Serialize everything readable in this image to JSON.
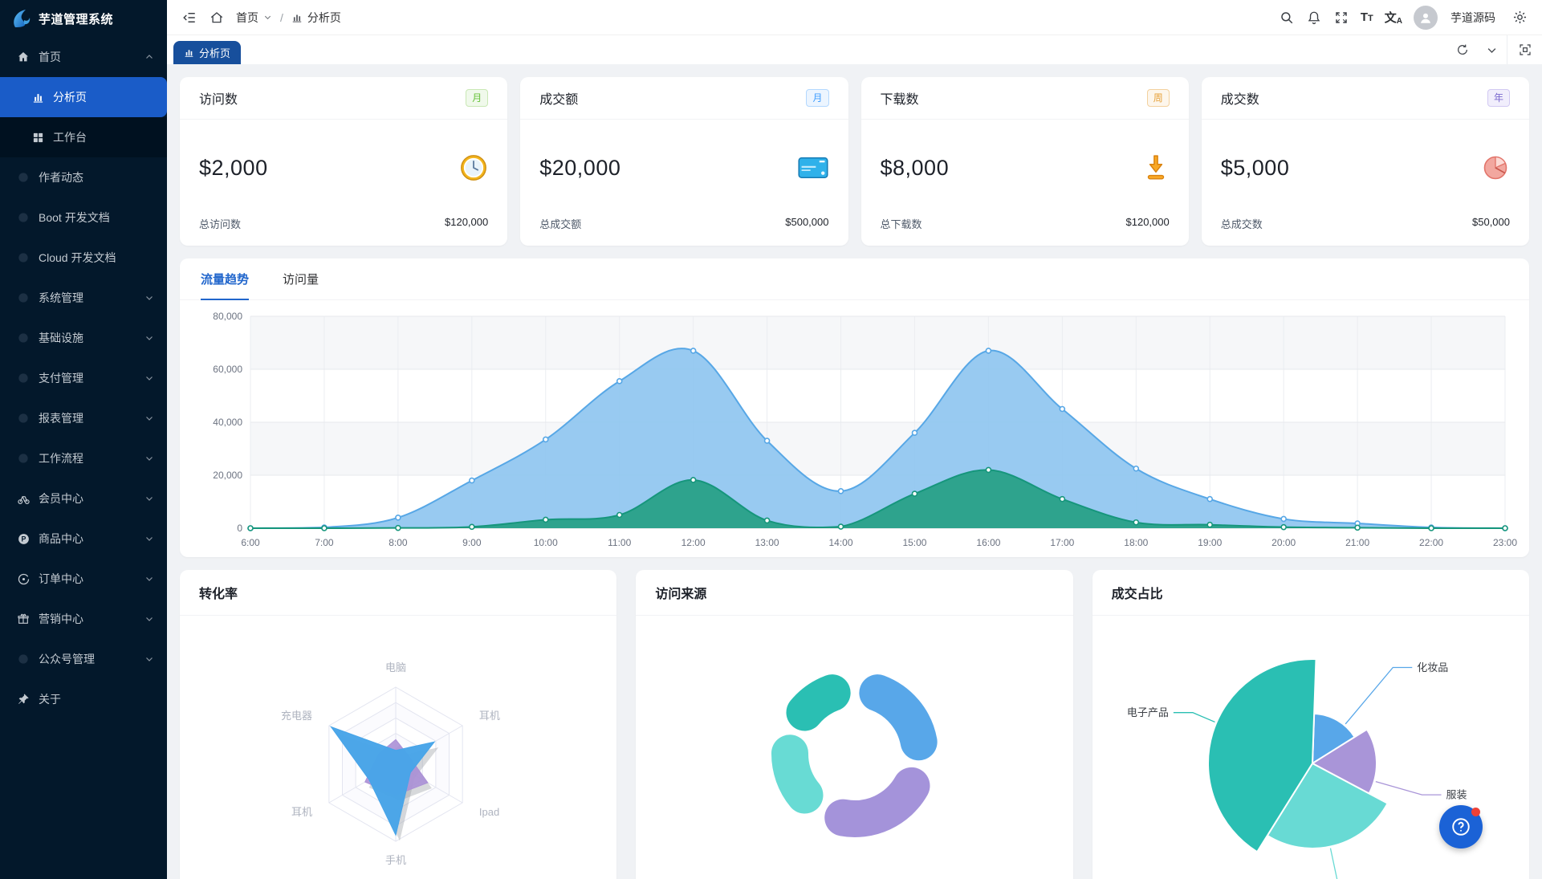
{
  "app": {
    "title": "芋道管理系统"
  },
  "topbar": {
    "breadcrumb_home": "首页",
    "breadcrumb_current": "分析页",
    "user_name": "芋道源码"
  },
  "tabbar": {
    "active_tab": "分析页"
  },
  "sidebar": {
    "items": [
      {
        "label": "首页",
        "icon": "home",
        "level": 1,
        "arrow": "up"
      },
      {
        "label": "分析页",
        "icon": "chart",
        "level": 2,
        "active": true
      },
      {
        "label": "工作台",
        "icon": "grid",
        "level": 2
      },
      {
        "label": "作者动态",
        "icon": "dot",
        "level": 1
      },
      {
        "label": "Boot 开发文档",
        "icon": "dot",
        "level": 1
      },
      {
        "label": "Cloud 开发文档",
        "icon": "dot",
        "level": 1
      },
      {
        "label": "系统管理",
        "icon": "dot",
        "level": 1,
        "arrow": "down"
      },
      {
        "label": "基础设施",
        "icon": "dot",
        "level": 1,
        "arrow": "down"
      },
      {
        "label": "支付管理",
        "icon": "dot",
        "level": 1,
        "arrow": "down"
      },
      {
        "label": "报表管理",
        "icon": "dot",
        "level": 1,
        "arrow": "down"
      },
      {
        "label": "工作流程",
        "icon": "dot",
        "level": 1,
        "arrow": "down"
      },
      {
        "label": "会员中心",
        "icon": "member",
        "level": 1,
        "arrow": "down"
      },
      {
        "label": "商品中心",
        "icon": "product",
        "level": 1,
        "arrow": "down"
      },
      {
        "label": "订单中心",
        "icon": "order",
        "level": 1,
        "arrow": "down"
      },
      {
        "label": "营销中心",
        "icon": "gift",
        "level": 1,
        "arrow": "down"
      },
      {
        "label": "公众号管理",
        "icon": "dot",
        "level": 1,
        "arrow": "down"
      },
      {
        "label": "关于",
        "icon": "pin",
        "level": 1
      }
    ]
  },
  "stat_cards": [
    {
      "title": "访问数",
      "badge": "月",
      "badge_type": "green",
      "value": "$2,000",
      "icon": "clock",
      "footer_label": "总访问数",
      "footer_value": "$120,000"
    },
    {
      "title": "成交额",
      "badge": "月",
      "badge_type": "blue",
      "value": "$20,000",
      "icon": "card",
      "footer_label": "总成交额",
      "footer_value": "$500,000"
    },
    {
      "title": "下载数",
      "badge": "周",
      "badge_type": "orange",
      "value": "$8,000",
      "icon": "download",
      "footer_label": "总下载数",
      "footer_value": "$120,000"
    },
    {
      "title": "成交数",
      "badge": "年",
      "badge_type": "purple",
      "value": "$5,000",
      "icon": "pie",
      "footer_label": "总成交数",
      "footer_value": "$50,000"
    }
  ],
  "trend_panel": {
    "tabs": [
      "流量趋势",
      "访问量"
    ],
    "active_tab_index": 0
  },
  "bottom_cards": {
    "conversion_title": "转化率",
    "source_title": "访问来源",
    "deal_title": "成交占比"
  },
  "chart_data": [
    {
      "id": "traffic_trend",
      "type": "area",
      "title": "流量趋势",
      "x": [
        "6:00",
        "7:00",
        "8:00",
        "9:00",
        "10:00",
        "11:00",
        "12:00",
        "13:00",
        "14:00",
        "15:00",
        "16:00",
        "17:00",
        "18:00",
        "19:00",
        "20:00",
        "21:00",
        "22:00",
        "23:00"
      ],
      "series": [
        {
          "name": "series-blue",
          "line_color": "#57a7e6",
          "fill_color": "#8fc6f0",
          "values": [
            0,
            300,
            4000,
            18000,
            33500,
            55500,
            67000,
            33000,
            14000,
            36000,
            67000,
            45000,
            22500,
            11000,
            3500,
            1800,
            300,
            0
          ]
        },
        {
          "name": "series-teal",
          "line_color": "#16967c",
          "fill_color": "#2aa188",
          "values": [
            0,
            0,
            100,
            500,
            3200,
            5000,
            18200,
            2900,
            600,
            13000,
            22000,
            11000,
            2200,
            1300,
            400,
            200,
            0,
            0
          ]
        }
      ],
      "ylim": [
        0,
        80000
      ],
      "yticks": [
        0,
        20000,
        40000,
        60000,
        80000
      ],
      "grid": true,
      "legend": false
    },
    {
      "id": "conversion_radar",
      "type": "radar",
      "title": "转化率",
      "indicators": [
        "电脑",
        "耳机",
        "Ipad",
        "手机",
        "耳机",
        "充电器"
      ],
      "max": 100,
      "series": [
        {
          "name": "radar-purple",
          "color": "#ab90d6",
          "values": [
            32,
            20,
            48,
            40,
            46,
            26
          ]
        },
        {
          "name": "radar-blue",
          "color": "#47a4e8",
          "values": [
            18,
            58,
            22,
            92,
            40,
            97
          ]
        }
      ]
    },
    {
      "id": "visit_source_donut",
      "type": "pie",
      "subtype": "donut",
      "title": "访问来源",
      "slices": [
        {
          "name": "slice-blue",
          "color": "#58a7e9",
          "start_deg": 4,
          "end_deg": 96,
          "percent_est": 26
        },
        {
          "name": "slice-purple",
          "color": "#a493da",
          "start_deg": 103,
          "end_deg": 207,
          "percent_est": 29
        },
        {
          "name": "slice-cyan",
          "color": "#68dbd4",
          "start_deg": 214,
          "end_deg": 287,
          "percent_est": 20
        },
        {
          "name": "slice-teal",
          "color": "#2abfb3",
          "start_deg": 293,
          "end_deg": 356,
          "percent_est": 18
        }
      ]
    },
    {
      "id": "deal_share_rose",
      "type": "pie",
      "subtype": "rose",
      "title": "成交占比",
      "slices": [
        {
          "label": "化妆品",
          "color": "#58a7e9",
          "start_deg": 2,
          "end_deg": 58,
          "radius_px": 62
        },
        {
          "label": "服装",
          "color": "#a995d8",
          "start_deg": 58,
          "end_deg": 118,
          "radius_px": 80
        },
        {
          "label": "",
          "color": "#68dad4",
          "start_deg": 118,
          "end_deg": 212,
          "radius_px": 106
        },
        {
          "label": "电子产品",
          "color": "#2abfb3",
          "start_deg": 212,
          "end_deg": 362,
          "radius_px": 130
        }
      ]
    }
  ]
}
